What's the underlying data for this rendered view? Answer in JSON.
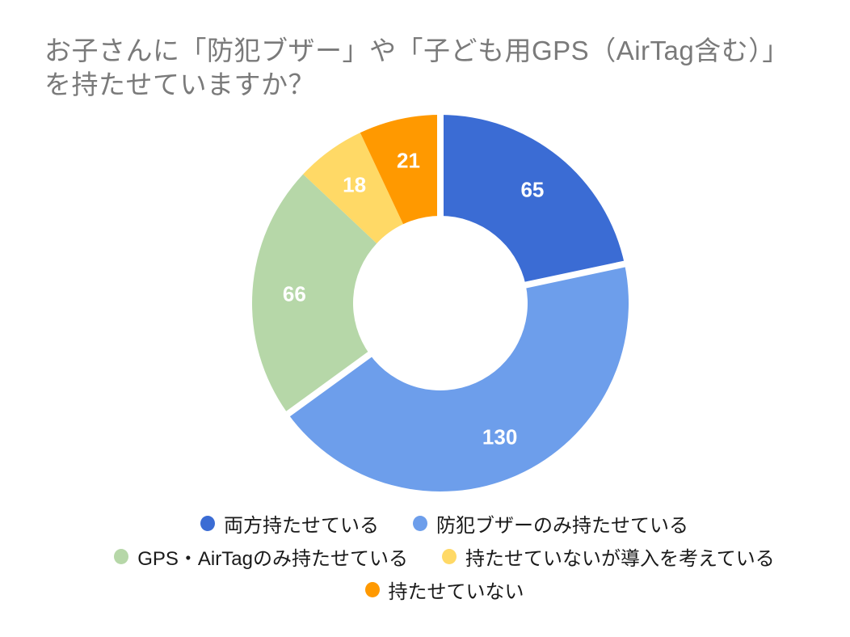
{
  "title": {
    "lines": [
      "お子さんに「防犯ブザー」や「子ども用GPS（AirTag含む）」",
      "を持たせていますか？"
    ],
    "color": "#7a7a7a"
  },
  "chart_data": {
    "type": "pie",
    "subtype": "donut",
    "title": "お子さんに「防犯ブザー」や「子ども用GPS（AirTag含む）」を持たせていますか？",
    "total": 300,
    "start_angle_deg": 0,
    "direction": "clockwise",
    "legend_position": "bottom",
    "value_label_color": "#ffffff",
    "slices": [
      {
        "label": "両方持たせている",
        "value": 65,
        "color": "#3b6cd4",
        "separated": true
      },
      {
        "label": "防犯ブザーのみ持たせている",
        "value": 130,
        "color": "#6d9eeb",
        "separated": true
      },
      {
        "label": "GPS・AirTagのみ持たせている",
        "value": 66,
        "color": "#b6d7a8",
        "separated": false
      },
      {
        "label": "持たせていないが導入を考えている",
        "value": 18,
        "color": "#ffd966",
        "separated": false
      },
      {
        "label": "持たせていない",
        "value": 21,
        "color": "#ff9900",
        "separated": false
      }
    ],
    "legend_rows": [
      [
        0,
        1
      ],
      [
        2,
        3
      ],
      [
        4
      ]
    ]
  }
}
